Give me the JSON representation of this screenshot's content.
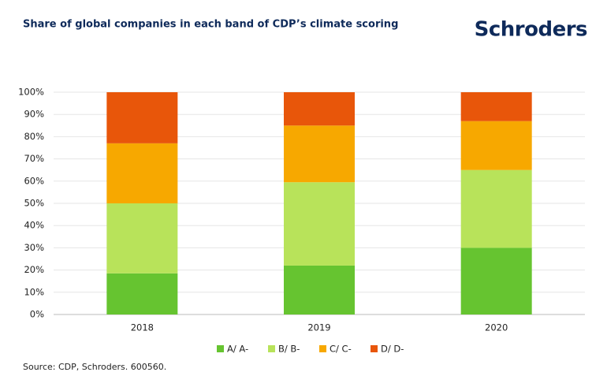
{
  "brand": "Schroders",
  "source": "Source: CDP, Schroders. 600560.",
  "chart_data": {
    "type": "stacked-bar",
    "title": "Share of global companies in each band of CDP’s climate scoring",
    "categories": [
      "2018",
      "2019",
      "2020"
    ],
    "series": [
      {
        "name": "A/ A-",
        "color": "#66c430",
        "values": [
          18.5,
          22,
          30
        ]
      },
      {
        "name": "B/ B-",
        "color": "#b8e35a",
        "values": [
          31.5,
          37.5,
          35
        ]
      },
      {
        "name": "C/ C-",
        "color": "#f7a800",
        "values": [
          27,
          25.5,
          22
        ]
      },
      {
        "name": "D/ D-",
        "color": "#e8560a",
        "values": [
          23,
          15,
          13
        ]
      }
    ],
    "ylim": [
      0,
      100
    ],
    "yticks": [
      {
        "value": 0,
        "label": "0%"
      },
      {
        "value": 10,
        "label": "10%"
      },
      {
        "value": 20,
        "label": "20%"
      },
      {
        "value": 30,
        "label": "30%"
      },
      {
        "value": 40,
        "label": "40%"
      },
      {
        "value": 50,
        "label": "50%"
      },
      {
        "value": 60,
        "label": "60%"
      },
      {
        "value": 70,
        "label": "70%"
      },
      {
        "value": 80,
        "label": "80%"
      },
      {
        "value": 90,
        "label": "90%"
      },
      {
        "value": 100,
        "label": "100%"
      }
    ],
    "grid": true,
    "legend": "bottom"
  }
}
